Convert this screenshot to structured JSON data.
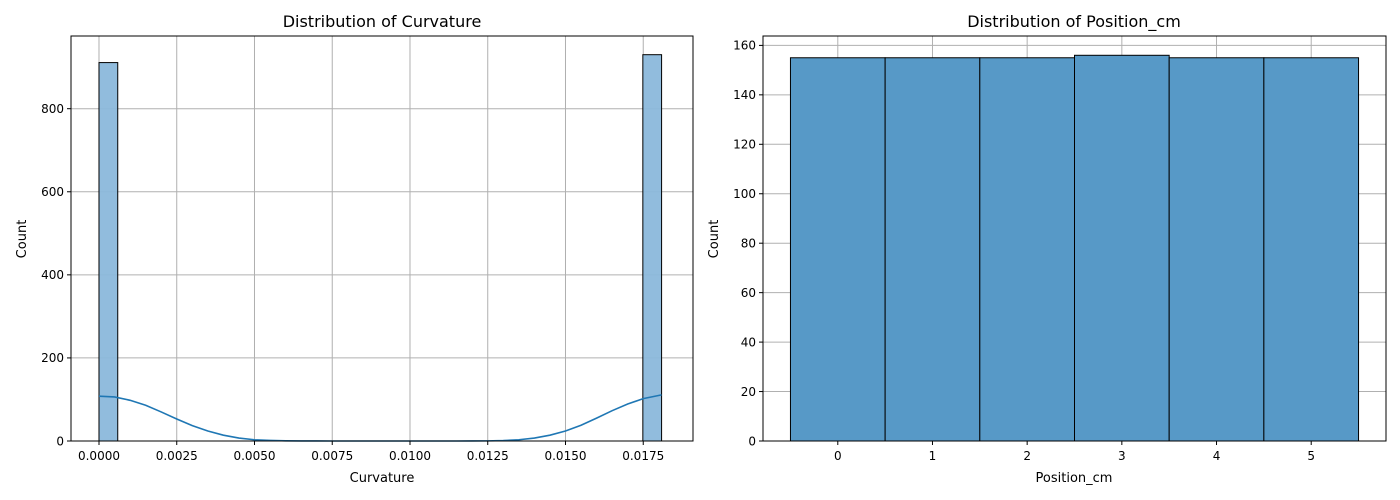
{
  "chart_data": [
    {
      "type": "bar",
      "subtype": "histogram",
      "title": "Distribution of Curvature",
      "xlabel": "Curvature",
      "ylabel": "Count",
      "xlim": [
        -0.0009,
        0.0191
      ],
      "ylim": [
        0,
        975
      ],
      "xticks": [
        "0.0000",
        "0.0025",
        "0.0050",
        "0.0075",
        "0.0100",
        "0.0125",
        "0.0150",
        "0.0175"
      ],
      "yticks": [
        "0",
        "200",
        "400",
        "600",
        "800"
      ],
      "grid": true,
      "bar_color": "#8bb8db",
      "bar_opacity": 0.95,
      "bins": [
        {
          "start": 0.0,
          "end": 0.000603,
          "value": 911
        },
        {
          "start": 0.017487,
          "end": 0.01809,
          "value": 930
        }
      ],
      "kde": {
        "color": "#1f77b4",
        "x": [
          0.0,
          0.0005,
          0.001,
          0.0015,
          0.002,
          0.0025,
          0.003,
          0.0035,
          0.004,
          0.0045,
          0.005,
          0.0055,
          0.006,
          0.0065,
          0.007,
          0.0075,
          0.008,
          0.0085,
          0.009,
          0.0095,
          0.01,
          0.0105,
          0.011,
          0.0115,
          0.012,
          0.0125,
          0.013,
          0.0135,
          0.014,
          0.0145,
          0.015,
          0.0155,
          0.016,
          0.0165,
          0.017,
          0.0175,
          0.01809
        ],
        "y": [
          108,
          106,
          98,
          86,
          70,
          53,
          37,
          24,
          14,
          7,
          3,
          1.5,
          0.5,
          0.2,
          0.05,
          0,
          0,
          0,
          0,
          0,
          0,
          0,
          0,
          0,
          0.1,
          0.3,
          1,
          3,
          7,
          14,
          24,
          38,
          55,
          73,
          89,
          102,
          111
        ]
      }
    },
    {
      "type": "bar",
      "subtype": "histogram",
      "title": "Distribution of Position_cm",
      "xlabel": "Position_cm",
      "ylabel": "Count",
      "xlim": [
        -0.79,
        5.79
      ],
      "ylim": [
        0,
        163.8
      ],
      "categories": [
        "0",
        "1",
        "2",
        "3",
        "4",
        "5"
      ],
      "values": [
        155,
        155,
        155,
        156,
        155,
        155
      ],
      "yticks": [
        "0",
        "20",
        "40",
        "60",
        "80",
        "100",
        "120",
        "140",
        "160"
      ],
      "grid": true,
      "bar_color": "#5799c7"
    }
  ]
}
